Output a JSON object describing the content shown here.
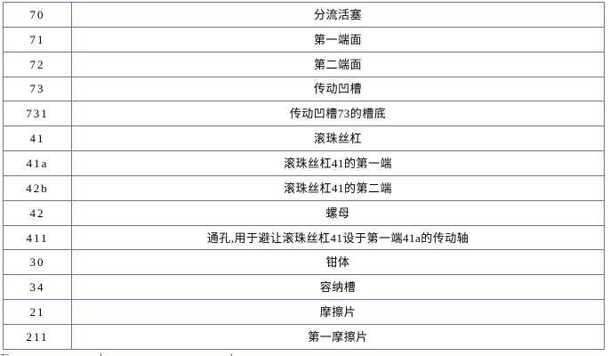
{
  "colors": {
    "border": "#70708c",
    "text": "#000000",
    "background": "#ffffff"
  },
  "table": {
    "columns": [
      "reference-numeral",
      "description"
    ],
    "rows": [
      {
        "ref": "70",
        "desc": "分流活塞"
      },
      {
        "ref": "71",
        "desc": "第一端面"
      },
      {
        "ref": "72",
        "desc": "第二端面"
      },
      {
        "ref": "73",
        "desc": "传动凹槽"
      },
      {
        "ref": "731",
        "desc": "传动凹槽73的槽底"
      },
      {
        "ref": "41",
        "desc": "滚珠丝杠"
      },
      {
        "ref": "41a",
        "desc": "滚珠丝杠41的第一端"
      },
      {
        "ref": "42b",
        "desc": "滚珠丝杠41的第二端"
      },
      {
        "ref": "42",
        "desc": "螺母"
      },
      {
        "ref": "411",
        "desc": "通孔,用于避让滚珠丝杠41设于第一端41a的传动轴"
      },
      {
        "ref": "30",
        "desc": "钳体"
      },
      {
        "ref": "34",
        "desc": "容纳槽"
      },
      {
        "ref": "21",
        "desc": "摩擦片"
      },
      {
        "ref": "211",
        "desc": "第一摩擦片"
      }
    ]
  }
}
